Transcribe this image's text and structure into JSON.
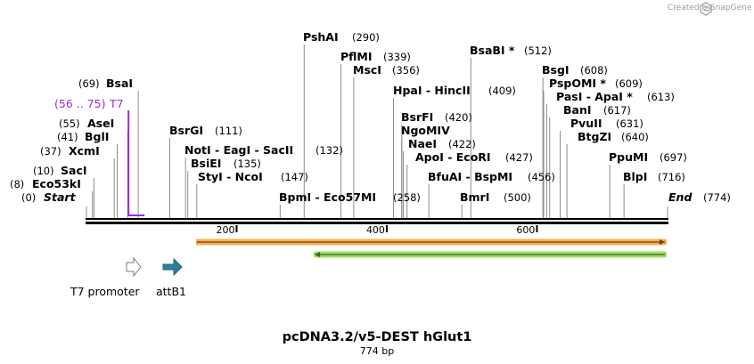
{
  "credit": {
    "prefix": "Created by",
    "brand": "SnapGene"
  },
  "title": "pcDNA3.2/v5-DEST hGlut1",
  "length_label": "774 bp",
  "ruler": {
    "total_bp": 774,
    "ticks": [
      200,
      400,
      600
    ]
  },
  "sites": [
    {
      "name": "Start",
      "pos": "(0)",
      "bp": 0,
      "style": "bold-italic"
    },
    {
      "name": "End",
      "pos": "(774)",
      "bp": 774,
      "style": "bold-italic"
    },
    {
      "name": "Eco53kI",
      "pos": "(8)",
      "bp": 8
    },
    {
      "name": "SacI",
      "pos": "(10)",
      "bp": 10
    },
    {
      "name": "XcmI",
      "pos": "(37)",
      "bp": 37
    },
    {
      "name": "BglI",
      "pos": "(41)",
      "bp": 41
    },
    {
      "name": "AseI",
      "pos": "(55)",
      "bp": 55
    },
    {
      "name": "BsaI",
      "pos": "(69)",
      "bp": 69
    },
    {
      "name": "BsrGI",
      "pos": "(111)",
      "bp": 111
    },
    {
      "name": "NotI - EagI - SacII",
      "pos": "(132)",
      "bp": 132
    },
    {
      "name": "BsiEI",
      "pos": "(135)",
      "bp": 135
    },
    {
      "name": "StyI - NcoI",
      "pos": "(147)",
      "bp": 147
    },
    {
      "name": "BpmI - Eco57MI",
      "pos": "(258)",
      "bp": 258
    },
    {
      "name": "PshAI",
      "pos": "(290)",
      "bp": 290
    },
    {
      "name": "PflMI",
      "pos": "(339)",
      "bp": 339
    },
    {
      "name": "MscI",
      "pos": "(356)",
      "bp": 356
    },
    {
      "name": "HpaI - HincII",
      "pos": "(409)",
      "bp": 409
    },
    {
      "name": "BsrFI",
      "pos": "(420)",
      "bp": 420
    },
    {
      "name": "NgoMIV",
      "pos": "",
      "bp": 420
    },
    {
      "name": "NaeI",
      "pos": "(422)",
      "bp": 422
    },
    {
      "name": "ApoI - EcoRI",
      "pos": "(427)",
      "bp": 427
    },
    {
      "name": "BfuAI - BspMI",
      "pos": "(456)",
      "bp": 456
    },
    {
      "name": "BmrI",
      "pos": "(500)",
      "bp": 500
    },
    {
      "name": "BsaBI *",
      "pos": "(512)",
      "bp": 512
    },
    {
      "name": "BsgI",
      "pos": "(608)",
      "bp": 608
    },
    {
      "name": "PspOMI *",
      "pos": "(609)",
      "bp": 609
    },
    {
      "name": "PasI - ApaI *",
      "pos": "(613)",
      "bp": 613
    },
    {
      "name": "BanI",
      "pos": "(617)",
      "bp": 617
    },
    {
      "name": "PvuII",
      "pos": "(631)",
      "bp": 631
    },
    {
      "name": "BtgZI",
      "pos": "(640)",
      "bp": 640
    },
    {
      "name": "PpuMI",
      "pos": "(697)",
      "bp": 697
    },
    {
      "name": "BlpI",
      "pos": "(716)",
      "bp": 716
    }
  ],
  "primer": {
    "name": "T7",
    "range": "(56 .. 75)",
    "start_bp": 56,
    "end_bp": 75,
    "color": "#9b30d0"
  },
  "features": [
    {
      "name": "T7 promoter",
      "start_bp": 56,
      "end_bp": 74,
      "color": "#ffffff",
      "stroke": "#777777"
    },
    {
      "name": "attB1",
      "start_bp": 104,
      "end_bp": 128,
      "color": "#2e7f99",
      "stroke": "#1f5f74"
    }
  ],
  "orfs": [
    {
      "direction": "forward",
      "start_bp": 147,
      "end_bp": 774,
      "color": "#f0a23a",
      "line": "#7a3f00"
    },
    {
      "direction": "reverse",
      "start_bp": 304,
      "end_bp": 774,
      "color": "#8ed84a",
      "line": "#2f6b1e"
    }
  ],
  "colors": {
    "backbone": "#000000",
    "site_line": "#8c8c8c",
    "brand": "#9a9a9a"
  }
}
